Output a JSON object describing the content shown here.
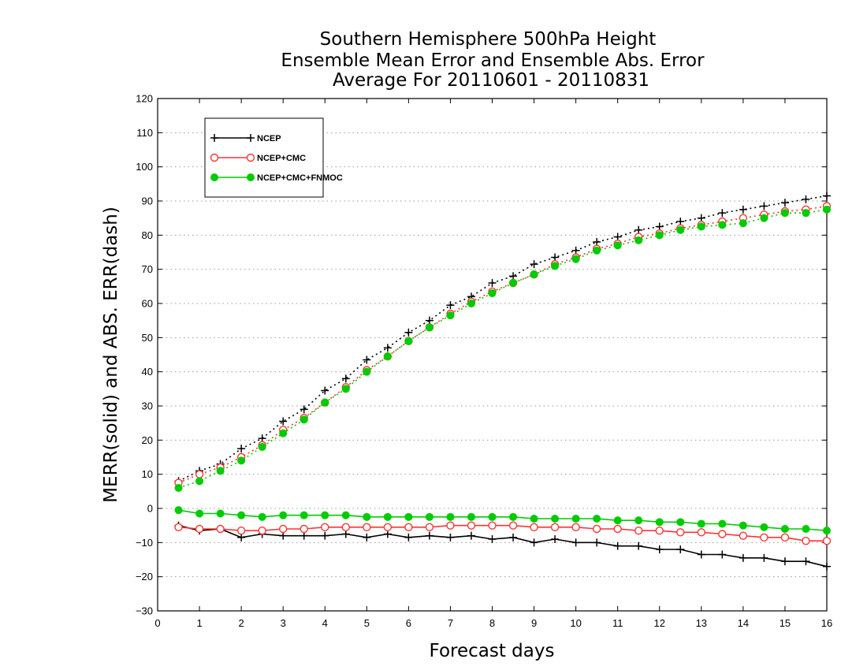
{
  "chart_data": {
    "type": "line",
    "title": [
      "Southern Hemisphere 500hPa Height",
      "Ensemble Mean Error and Ensemble Abs. Error",
      "Average For 20110601 - 20110831"
    ],
    "xlabel": "Forecast days",
    "ylabel": "MERR(solid) and ABS. ERR(dash)",
    "xlim": [
      0,
      16
    ],
    "ylim": [
      -30,
      120
    ],
    "xticks": [
      "0",
      "1",
      "2",
      "3",
      "4",
      "5",
      "6",
      "7",
      "8",
      "9",
      "10",
      "11",
      "12",
      "13",
      "14",
      "15",
      "16"
    ],
    "yticks": [
      "−30",
      "−20",
      "−10",
      "0",
      "10",
      "20",
      "30",
      "40",
      "50",
      "60",
      "70",
      "80",
      "90",
      "100",
      "110",
      "120"
    ],
    "grid": "horizontal dotted",
    "legend_position": "top-left",
    "x": [
      0.5,
      1,
      1.5,
      2,
      2.5,
      3,
      3.5,
      4,
      4.5,
      5,
      5.5,
      6,
      6.5,
      7,
      7.5,
      8,
      8.5,
      9,
      9.5,
      10,
      10.5,
      11,
      11.5,
      12,
      12.5,
      13,
      13.5,
      14,
      14.5,
      15,
      15.5,
      16
    ],
    "series": [
      {
        "name": "NCEP",
        "color": "#000000",
        "marker": "plus",
        "merr": [
          -5,
          -6.5,
          -6,
          -8.5,
          -7.5,
          -8,
          -8,
          -8,
          -7.5,
          -8.5,
          -7.5,
          -8.5,
          -8,
          -8.5,
          -8,
          -9,
          -8.5,
          -10,
          -9,
          -10,
          -10,
          -11,
          -11,
          -12,
          -12,
          -13.5,
          -13.5,
          -14.5,
          -14.5,
          -15.5,
          -15.5,
          -17
        ],
        "abs_err": [
          8,
          11,
          13,
          17.5,
          20.5,
          25.5,
          29,
          34.5,
          38,
          43.5,
          47,
          51.5,
          55,
          59.5,
          62,
          66,
          68,
          71.5,
          73.5,
          75.5,
          78,
          79.5,
          81.5,
          82.5,
          84,
          85,
          86.5,
          87.5,
          88.5,
          89.5,
          90.5,
          91.5
        ]
      },
      {
        "name": "NCEP+CMC",
        "color": "#ff3333",
        "marker": "open-circle",
        "merr": [
          -5.5,
          -6,
          -6,
          -6.5,
          -6.5,
          -6,
          -6,
          -5.5,
          -5.5,
          -5.5,
          -5.5,
          -5.5,
          -5.5,
          -5,
          -5,
          -5,
          -5,
          -5.5,
          -5.5,
          -5.5,
          -6,
          -6,
          -6.5,
          -6.5,
          -7,
          -7,
          -7.5,
          -8,
          -8.5,
          -8.5,
          -9.5,
          -9.5
        ],
        "abs_err": [
          7.5,
          10,
          12,
          15,
          18.5,
          23,
          26.5,
          31,
          35.5,
          40.5,
          44.5,
          49,
          53,
          57,
          60.5,
          63.5,
          66,
          68.5,
          71.5,
          73.5,
          76,
          77.5,
          79.5,
          80.5,
          82,
          83,
          84,
          85,
          86,
          87,
          87.5,
          88.5
        ]
      },
      {
        "name": "NCEP+CMC+FNMOC",
        "color": "#00cc00",
        "marker": "filled-circle",
        "merr": [
          -0.5,
          -1.5,
          -1.5,
          -2,
          -2.5,
          -2,
          -2,
          -2,
          -2,
          -2.5,
          -2.5,
          -2.5,
          -2.5,
          -2.5,
          -2.5,
          -2.5,
          -2.5,
          -3,
          -3,
          -3,
          -3,
          -3.5,
          -3.5,
          -4,
          -4,
          -4.5,
          -4.5,
          -5,
          -5.5,
          -6,
          -6,
          -6.5
        ],
        "abs_err": [
          6,
          8,
          11,
          14,
          18,
          22,
          26,
          31,
          35,
          40,
          44.5,
          49,
          53,
          56.5,
          60,
          63,
          66,
          68.5,
          71,
          73,
          75.5,
          77,
          78.5,
          80,
          81.5,
          82.5,
          83,
          83.5,
          85,
          86.5,
          86.5,
          87.5
        ]
      }
    ]
  }
}
